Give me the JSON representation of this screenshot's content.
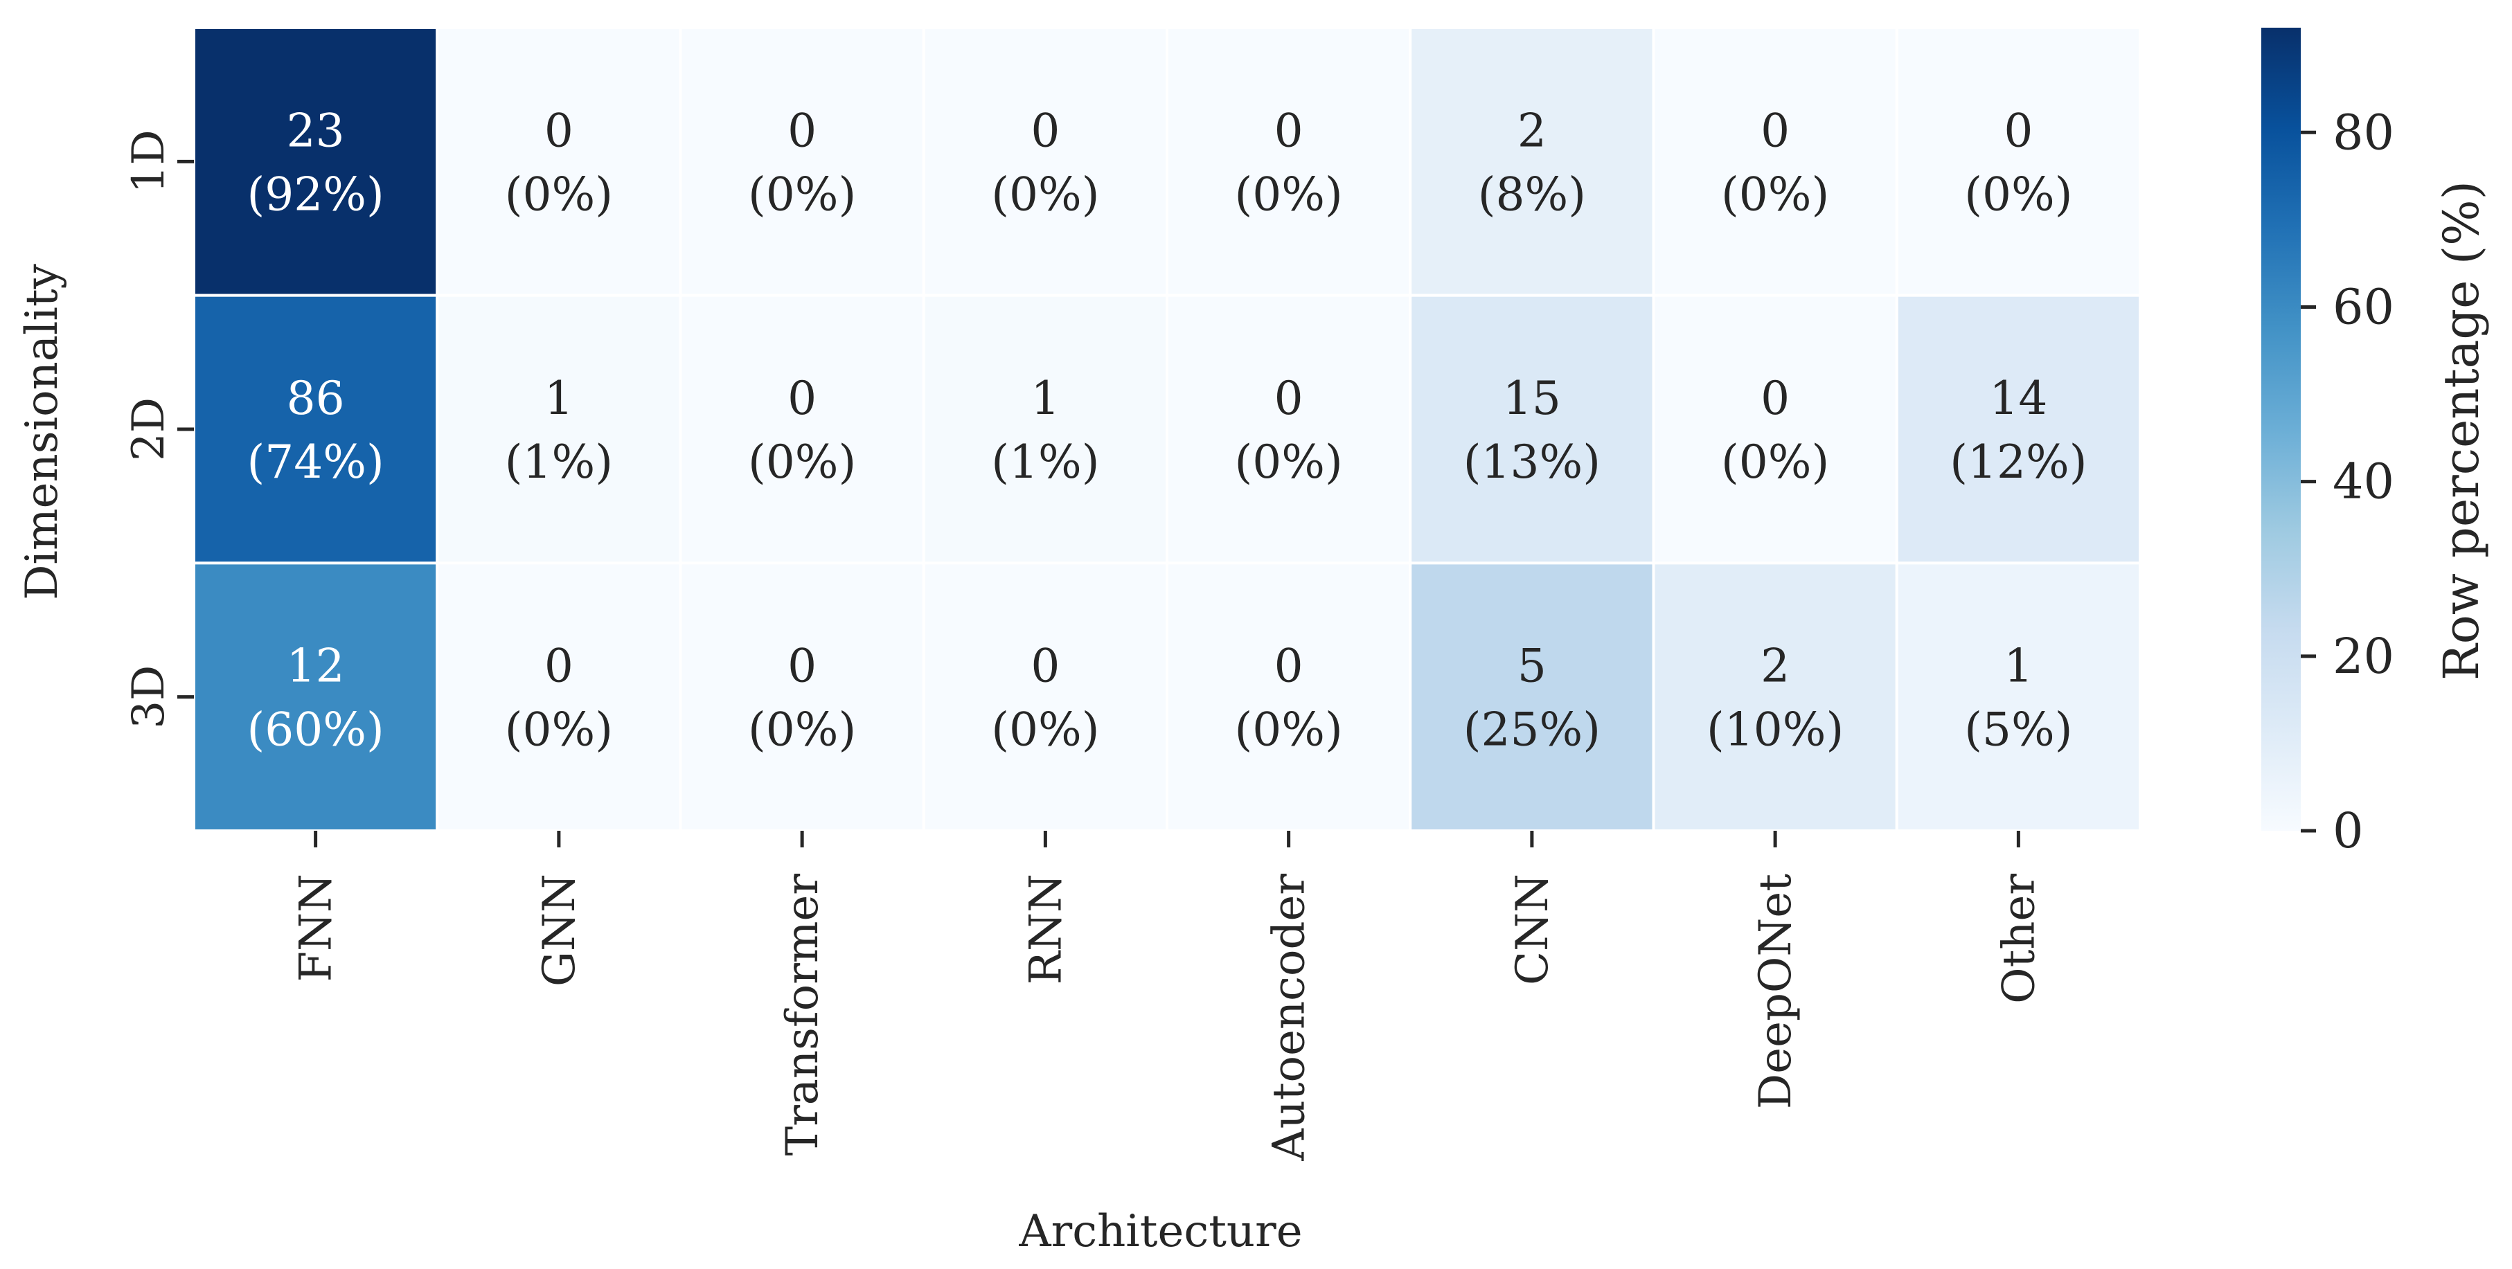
{
  "chart_data": {
    "type": "heatmap",
    "xlabel": "Architecture",
    "ylabel": "Dimensionality",
    "x_categories": [
      "FNN",
      "GNN",
      "Transformer",
      "RNN",
      "Autoencoder",
      "CNN",
      "DeepONet",
      "Other"
    ],
    "y_categories": [
      "1D",
      "2D",
      "3D"
    ],
    "counts": [
      [
        23,
        0,
        0,
        0,
        0,
        2,
        0,
        0
      ],
      [
        86,
        1,
        0,
        1,
        0,
        15,
        0,
        14
      ],
      [
        12,
        0,
        0,
        0,
        0,
        5,
        2,
        1
      ]
    ],
    "cell_labels": [
      [
        {
          "count": "23",
          "pct": "(92%)"
        },
        {
          "count": "0",
          "pct": "(0%)"
        },
        {
          "count": "0",
          "pct": "(0%)"
        },
        {
          "count": "0",
          "pct": "(0%)"
        },
        {
          "count": "0",
          "pct": "(0%)"
        },
        {
          "count": "2",
          "pct": "(8%)"
        },
        {
          "count": "0",
          "pct": "(0%)"
        },
        {
          "count": "0",
          "pct": "(0%)"
        }
      ],
      [
        {
          "count": "86",
          "pct": "(74%)"
        },
        {
          "count": "1",
          "pct": "(1%)"
        },
        {
          "count": "0",
          "pct": "(0%)"
        },
        {
          "count": "1",
          "pct": "(1%)"
        },
        {
          "count": "0",
          "pct": "(0%)"
        },
        {
          "count": "15",
          "pct": "(13%)"
        },
        {
          "count": "0",
          "pct": "(0%)"
        },
        {
          "count": "14",
          "pct": "(12%)"
        }
      ],
      [
        {
          "count": "12",
          "pct": "(60%)"
        },
        {
          "count": "0",
          "pct": "(0%)"
        },
        {
          "count": "0",
          "pct": "(0%)"
        },
        {
          "count": "0",
          "pct": "(0%)"
        },
        {
          "count": "0",
          "pct": "(0%)"
        },
        {
          "count": "5",
          "pct": "(25%)"
        },
        {
          "count": "2",
          "pct": "(10%)"
        },
        {
          "count": "1",
          "pct": "(5%)"
        }
      ]
    ],
    "row_percentages": [
      [
        92,
        0,
        0,
        0,
        0,
        8,
        0,
        0
      ],
      [
        74,
        1,
        0,
        1,
        0,
        13,
        0,
        12
      ],
      [
        60,
        0,
        0,
        0,
        0,
        25,
        10,
        5
      ]
    ],
    "colorbar": {
      "label": "Row percentage (%)",
      "range": [
        0,
        92
      ],
      "ticks": [
        0,
        20,
        40,
        60,
        80
      ],
      "tick_labels": [
        "0",
        "20",
        "40",
        "60",
        "80"
      ],
      "colormap": "Blues",
      "colors": [
        "#f7fbff",
        "#deebf7",
        "#c6dbef",
        "#9ecae1",
        "#6baed6",
        "#4292c6",
        "#2171b5",
        "#08519c",
        "#08306b"
      ]
    },
    "text_colors": {
      "dark": "#262626",
      "light": "#ffffff"
    },
    "grid": false
  }
}
